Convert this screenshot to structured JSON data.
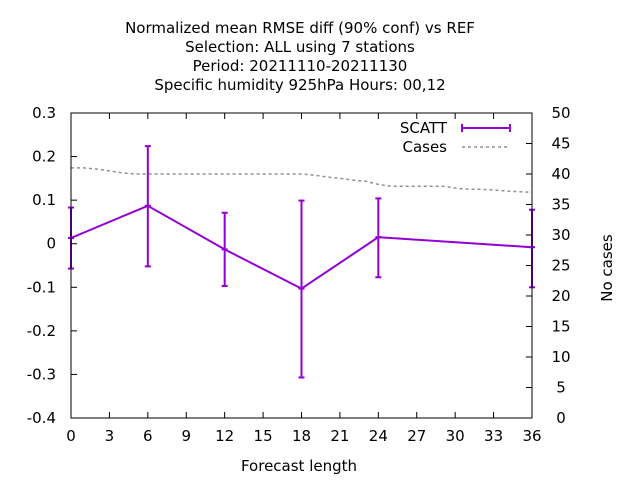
{
  "chart_data": {
    "type": "line",
    "title_lines": [
      "Normalized mean RMSE diff (90% conf) vs REF",
      "Selection: ALL using     7 stations",
      "Period: 20211110-20211130",
      "Specific humidity 925hPa   Hours:  00,12"
    ],
    "xlabel": "Forecast length",
    "ylabel": "",
    "y2label": "No cases",
    "xlim": [
      0,
      36
    ],
    "ylim": [
      -0.4,
      0.3
    ],
    "y2lim": [
      0,
      50
    ],
    "x_ticks": [
      0,
      3,
      6,
      9,
      12,
      15,
      18,
      21,
      24,
      27,
      30,
      33,
      36
    ],
    "x_tick_labels": [
      "0",
      "3",
      "6",
      "9",
      "12",
      "15",
      "18",
      "21",
      "24",
      "27",
      "30",
      "33",
      "36"
    ],
    "y_ticks": [
      -0.4,
      -0.3,
      -0.2,
      -0.1,
      0,
      0.1,
      0.2,
      0.3
    ],
    "y_tick_labels": [
      "-0.4",
      "-0.3",
      "-0.2",
      "-0.1",
      "0",
      "0.1",
      "0.2",
      "0.3"
    ],
    "y2_ticks": [
      0,
      5,
      10,
      15,
      20,
      25,
      30,
      35,
      40,
      45,
      50
    ],
    "y2_tick_labels": [
      "0",
      "5",
      "10",
      "15",
      "20",
      "25",
      "30",
      "35",
      "40",
      "45",
      "50"
    ],
    "legend_position": "top-right",
    "series": [
      {
        "name": "SCATT",
        "axis": "y",
        "color": "#9400d3",
        "style": "line-errorbars",
        "x": [
          0,
          6,
          12,
          18,
          24,
          36
        ],
        "values": [
          0.013,
          0.087,
          -0.013,
          -0.103,
          0.015,
          -0.008
        ],
        "err_low": [
          -0.057,
          -0.052,
          -0.097,
          -0.307,
          -0.077,
          -0.1
        ],
        "err_high": [
          0.083,
          0.224,
          0.071,
          0.099,
          0.104,
          0.078
        ]
      },
      {
        "name": "Cases",
        "axis": "y2",
        "color": "#909090",
        "style": "dashed",
        "x": [
          0,
          1,
          2,
          3,
          4,
          5,
          6,
          7,
          8,
          9,
          10,
          11,
          12,
          13,
          14,
          15,
          16,
          17,
          18,
          19,
          20,
          21,
          22,
          23,
          24,
          25,
          26,
          27,
          28,
          29,
          30,
          31,
          32,
          33,
          34,
          35,
          36
        ],
        "values": [
          41,
          41,
          40.8,
          40.5,
          40.2,
          40,
          40,
          40,
          40,
          40,
          40,
          40,
          40,
          40,
          40,
          40,
          40,
          40,
          40,
          39.8,
          39.5,
          39.3,
          39,
          38.8,
          38.3,
          38,
          38,
          38,
          38,
          38,
          37.7,
          37.5,
          37.5,
          37.4,
          37.2,
          37.1,
          37
        ]
      }
    ]
  }
}
